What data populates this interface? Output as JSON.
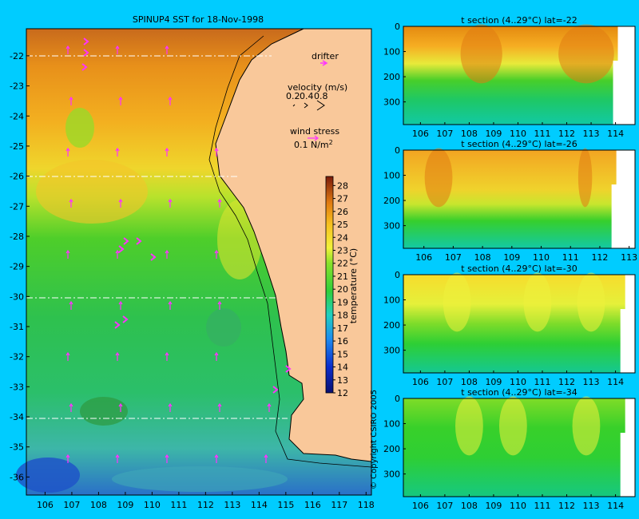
{
  "colors": {
    "background": "#00ccff",
    "land": "#f9c89a",
    "arrow": "#ff33ff",
    "coast": "#000000",
    "section_white": "#ffffff"
  },
  "map": {
    "title": "SPINUP4 SST for 18-Nov-1998",
    "legend_drifter": "drifter",
    "legend_velocity_title": "velocity (m/s)",
    "legend_velocity_values": [
      "0.2",
      "0.4",
      "0.8"
    ],
    "legend_wind_title": "wind stress",
    "legend_wind_value": "0.1 N/m",
    "legend_wind_exp": "2",
    "colorbar_label": "temperature (°C)",
    "copyright": "© Copyright CSIRO 2005"
  },
  "chart_data": [
    {
      "type": "heatmap",
      "name": "sst-map",
      "x_ticks": [
        106,
        107,
        108,
        109,
        110,
        111,
        112,
        113,
        114,
        115,
        116,
        117,
        118
      ],
      "y_ticks": [
        -22,
        -23,
        -24,
        -25,
        -26,
        -27,
        -28,
        -29,
        -30,
        -31,
        -32,
        -33,
        -34,
        -35,
        -36
      ],
      "xlim": [
        105.3,
        118.2
      ],
      "ylim": [
        -36.6,
        -21.1
      ],
      "colorbar_ticks": [
        12,
        13,
        14,
        15,
        16,
        17,
        18,
        19,
        20,
        21,
        22,
        23,
        24,
        25,
        26,
        27,
        28
      ],
      "colorbar_range": [
        12,
        28.7
      ],
      "section_latitudes": [
        -22,
        -26,
        -30,
        -34
      ]
    },
    {
      "type": "heatmap",
      "title": "t section (4..29°C) lat=-22",
      "x_ticks": [
        106,
        107,
        108,
        109,
        110,
        111,
        112,
        113,
        114
      ],
      "y_ticks": [
        0,
        100,
        200,
        300
      ],
      "xlim": [
        105.3,
        114.8
      ],
      "ylim": [
        0,
        390
      ]
    },
    {
      "type": "heatmap",
      "title": "t section (4..29°C) lat=-26",
      "x_ticks": [
        106,
        107,
        108,
        109,
        110,
        111,
        112,
        113
      ],
      "y_ticks": [
        0,
        100,
        200,
        300
      ],
      "xlim": [
        105.3,
        113.2
      ],
      "ylim": [
        0,
        390
      ]
    },
    {
      "type": "heatmap",
      "title": "t section (4..29°C) lat=-30",
      "x_ticks": [
        106,
        107,
        108,
        109,
        110,
        111,
        112,
        113,
        114
      ],
      "y_ticks": [
        0,
        100,
        200,
        300
      ],
      "xlim": [
        105.3,
        114.8
      ],
      "ylim": [
        0,
        390
      ]
    },
    {
      "type": "heatmap",
      "title": "t section (4..29°C) lat=-34",
      "x_ticks": [
        106,
        107,
        108,
        109,
        110,
        111,
        112,
        113,
        114
      ],
      "y_ticks": [
        0,
        100,
        200,
        300
      ],
      "xlim": [
        105.3,
        114.8
      ],
      "ylim": [
        0,
        390
      ]
    }
  ]
}
